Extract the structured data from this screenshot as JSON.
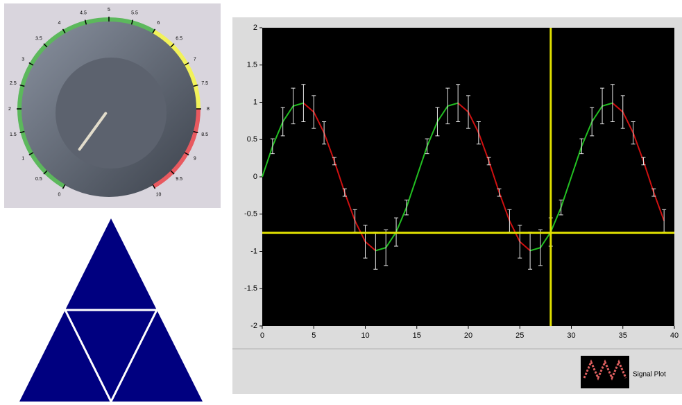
{
  "knob": {
    "min": 0,
    "max": 10,
    "value": 0.2,
    "labels": [
      0,
      0.5,
      1,
      1.5,
      2,
      2.5,
      3,
      3.5,
      4,
      4.5,
      5,
      5.5,
      6,
      6.5,
      7,
      7.5,
      8,
      8.5,
      9,
      9.5,
      10
    ],
    "ranges": [
      {
        "from": 0,
        "to": 6,
        "color": "#5cb85c"
      },
      {
        "from": 6,
        "to": 8,
        "color": "#f2f25a"
      },
      {
        "from": 8,
        "to": 10,
        "color": "#e8595f"
      }
    ]
  },
  "chart_data": {
    "type": "line",
    "x": [
      0,
      1,
      2,
      3,
      4,
      5,
      6,
      7,
      8,
      9,
      10,
      11,
      12,
      13,
      14,
      15,
      16,
      17,
      18,
      19,
      20,
      21,
      22,
      23,
      24,
      25,
      26,
      27,
      28,
      29,
      30,
      31,
      32,
      33,
      34,
      35,
      36,
      37,
      38,
      39
    ],
    "series": [
      {
        "name": "Signal Plot",
        "rising_color": "#22c022",
        "falling_color": "#d01010",
        "values": [
          0,
          0.41,
          0.74,
          0.95,
          0.99,
          0.87,
          0.59,
          0.21,
          -0.21,
          -0.59,
          -0.87,
          -0.99,
          -0.95,
          -0.74,
          -0.41,
          0,
          0.41,
          0.74,
          0.95,
          0.99,
          0.87,
          0.59,
          0.21,
          -0.21,
          -0.59,
          -0.87,
          -0.99,
          -0.95,
          -0.74,
          -0.41,
          0,
          0.41,
          0.74,
          0.95,
          0.99,
          0.87,
          0.59,
          0.21,
          -0.21,
          -0.59
        ],
        "errors": [
          0,
          0.1,
          0.19,
          0.24,
          0.25,
          0.22,
          0.15,
          0.05,
          0.05,
          0.15,
          0.22,
          0.25,
          0.24,
          0.19,
          0.1,
          0,
          0.1,
          0.19,
          0.24,
          0.25,
          0.22,
          0.15,
          0.05,
          0.05,
          0.15,
          0.22,
          0.25,
          0.24,
          0.19,
          0.1,
          0,
          0.1,
          0.19,
          0.24,
          0.25,
          0.22,
          0.15,
          0.05,
          0.05,
          0.15
        ]
      }
    ],
    "xlim": [
      0,
      40
    ],
    "xticks": [
      0,
      5,
      10,
      15,
      20,
      25,
      30,
      35,
      40
    ],
    "ylim": [
      -2,
      2
    ],
    "yticks": [
      -2,
      -1.5,
      -1,
      -0.5,
      0,
      0.5,
      1,
      1.5,
      2
    ],
    "cursor": {
      "x": 28,
      "y": -0.75,
      "color": "#e0e000"
    }
  }
}
